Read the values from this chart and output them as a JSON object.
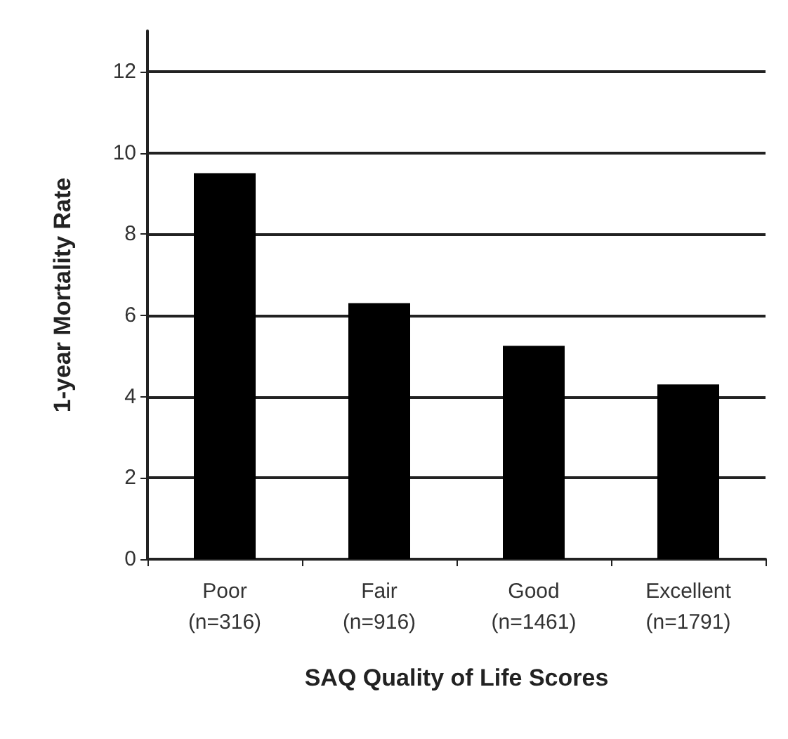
{
  "chart_data": {
    "type": "bar",
    "xlabel": "SAQ Quality of Life Scores",
    "ylabel": "1-year Mortality Rate",
    "categories": [
      "Poor\n(n=316)",
      "Fair\n(n=916)",
      "Good\n(n=1461)",
      "Excellent\n(n=1791)"
    ],
    "values": [
      9.5,
      6.3,
      5.25,
      4.3
    ],
    "color": "#000000",
    "ylim": [
      0,
      13
    ],
    "yticks": [
      0,
      2,
      4,
      6,
      8,
      10,
      12
    ],
    "grid": "y"
  }
}
